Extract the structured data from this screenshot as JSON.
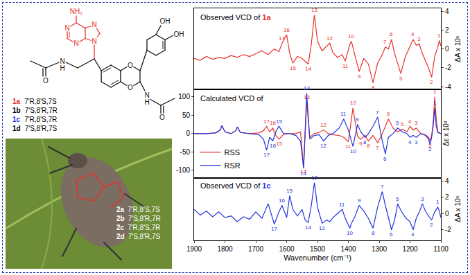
{
  "chart_data": [
    {
      "type": "line",
      "title": "Observed VCD of",
      "compound": "1a",
      "y_label": "ΔA x 10⁵",
      "xlim": [
        1900,
        1100
      ],
      "xticks": [
        1900,
        1800,
        1700,
        1600,
        1500,
        1400,
        1300,
        1200,
        1100
      ],
      "ylim": [
        -4.3,
        4.3
      ],
      "yticks": [
        -4,
        -2,
        0,
        2,
        4
      ],
      "grid": false,
      "tick_labels": "y",
      "x": [
        1900,
        1880,
        1860,
        1840,
        1820,
        1800,
        1780,
        1760,
        1740,
        1720,
        1700,
        1680,
        1660,
        1640,
        1625,
        1615,
        1600,
        1590,
        1580,
        1565,
        1550,
        1540,
        1530,
        1520,
        1510,
        1500,
        1485,
        1470,
        1460,
        1450,
        1435,
        1420,
        1410,
        1395,
        1390,
        1380,
        1365,
        1350,
        1335,
        1320,
        1305,
        1290,
        1280,
        1270,
        1260,
        1250,
        1240,
        1230,
        1215,
        1200,
        1190,
        1180,
        1170,
        1160,
        1150,
        1140,
        1130,
        1120,
        1110,
        1105,
        1100
      ],
      "series": [
        {
          "color": "#e8302a",
          "values": [
            -1.0,
            -1.2,
            -0.8,
            -1.1,
            -0.9,
            -1.0,
            -0.7,
            -0.9,
            -0.6,
            -0.8,
            -0.5,
            -0.2,
            -0.6,
            0.0,
            -0.3,
            0.6,
            1.5,
            -0.5,
            -1.5,
            -0.8,
            -1.0,
            -1.3,
            -1.6,
            0.5,
            3.6,
            0.8,
            -0.2,
            0.3,
            0.6,
            -0.4,
            -0.9,
            -0.6,
            -1.3,
            0.5,
            0.8,
            -0.5,
            -2.4,
            -1.0,
            -1.6,
            -3.6,
            -1.5,
            -0.6,
            0.2,
            0.0,
            1.0,
            -0.5,
            -1.5,
            -2.6,
            -0.8,
            0.3,
            1.0,
            0.4,
            0.5,
            -0.5,
            -1.2,
            -2.0,
            -3.0,
            -0.8,
            0.2,
            0.9,
            0.3
          ],
          "peaks": [
            {
              "label": "17",
              "x": 1615
            },
            {
              "label": "16",
              "x": 1600
            },
            {
              "label": "15",
              "x": 1580
            },
            {
              "label": "14",
              "x": 1530
            },
            {
              "label": "13",
              "x": 1510
            },
            {
              "label": "12",
              "x": 1460
            },
            {
              "label": "11",
              "x": 1410
            },
            {
              "label": "10",
              "x": 1390
            },
            {
              "label": "9",
              "x": 1365
            },
            {
              "label": "8",
              "x": 1320
            },
            {
              "label": "7",
              "x": 1280
            },
            {
              "label": "6",
              "x": 1260
            },
            {
              "label": "5",
              "x": 1230
            },
            {
              "label": "4",
              "x": 1190
            },
            {
              "label": "3",
              "x": 1170
            },
            {
              "label": "2",
              "x": 1130
            },
            {
              "label": "1",
              "x": 1105
            }
          ]
        }
      ]
    },
    {
      "type": "line",
      "title": "Calculated VCD of",
      "y_label": "Δε x 10³",
      "xlim": [
        1900,
        1100
      ],
      "xticks": [
        1900,
        1800,
        1700,
        1600,
        1500,
        1400,
        1300,
        1200,
        1100
      ],
      "ylim": [
        -120,
        120
      ],
      "yticks": [
        -100,
        -50,
        0,
        50,
        100
      ],
      "grid": false,
      "tick_labels": "y",
      "legend": "lower left",
      "x": [
        1900,
        1860,
        1830,
        1815,
        1810,
        1800,
        1780,
        1765,
        1760,
        1750,
        1720,
        1690,
        1675,
        1665,
        1655,
        1645,
        1635,
        1625,
        1610,
        1590,
        1570,
        1555,
        1545,
        1535,
        1525,
        1510,
        1495,
        1480,
        1465,
        1450,
        1430,
        1415,
        1400,
        1385,
        1370,
        1360,
        1345,
        1335,
        1320,
        1305,
        1290,
        1280,
        1270,
        1255,
        1240,
        1225,
        1210,
        1200,
        1190,
        1180,
        1165,
        1150,
        1140,
        1135,
        1130,
        1125,
        1120,
        1115,
        1110,
        1100
      ],
      "series": [
        {
          "name": "RSS",
          "color": "#e8302a",
          "values": [
            0,
            0,
            2,
            10,
            22,
            5,
            0,
            8,
            18,
            3,
            0,
            2,
            8,
            20,
            5,
            15,
            -5,
            -15,
            -2,
            0,
            0,
            5,
            -90,
            85,
            -10,
            0,
            3,
            10,
            0,
            -3,
            -5,
            -10,
            -22,
            70,
            -8,
            -15,
            -5,
            -20,
            -5,
            -25,
            0,
            20,
            40,
            15,
            5,
            12,
            5,
            20,
            10,
            15,
            0,
            -3,
            -10,
            -20,
            -5,
            30,
            100,
            40,
            5,
            0
          ],
          "peaks": [
            {
              "label": "17",
              "x": 1665
            },
            {
              "label": "16",
              "x": 1645
            },
            {
              "label": "15",
              "x": 1625
            },
            {
              "label": "14",
              "x": 1545
            },
            {
              "label": "13",
              "x": 1535
            },
            {
              "label": "12",
              "x": 1480
            },
            {
              "label": "11",
              "x": 1400
            },
            {
              "label": "10",
              "x": 1385
            },
            {
              "label": "9",
              "x": 1360
            },
            {
              "label": "8",
              "x": 1335
            },
            {
              "label": "7",
              "x": 1305
            },
            {
              "label": "6",
              "x": 1270
            },
            {
              "label": "5",
              "x": 1225
            },
            {
              "label": "4",
              "x": 1200
            },
            {
              "label": "3",
              "x": 1180
            },
            {
              "label": "2",
              "x": 1135
            },
            {
              "label": "1",
              "x": 1120
            }
          ]
        },
        {
          "name": "RSR",
          "color": "#2233dd",
          "values": [
            0,
            0,
            2,
            10,
            22,
            5,
            0,
            8,
            18,
            3,
            0,
            -3,
            -15,
            -45,
            -10,
            -20,
            5,
            20,
            0,
            0,
            -5,
            -20,
            -95,
            110,
            -15,
            -5,
            -3,
            -20,
            -5,
            0,
            15,
            40,
            10,
            -35,
            25,
            5,
            -10,
            0,
            20,
            45,
            -20,
            -55,
            -10,
            0,
            15,
            5,
            0,
            -10,
            -5,
            -10,
            0,
            -5,
            -15,
            -30,
            -10,
            20,
            70,
            20,
            3,
            0
          ],
          "peaks": [
            {
              "label": "17",
              "x": 1665
            },
            {
              "label": "16",
              "x": 1645
            },
            {
              "label": "15",
              "x": 1625
            },
            {
              "label": "14",
              "x": 1545
            },
            {
              "label": "13",
              "x": 1535
            },
            {
              "label": "12",
              "x": 1480
            },
            {
              "label": "11",
              "x": 1415
            },
            {
              "label": "10",
              "x": 1385
            },
            {
              "label": "9",
              "x": 1370
            },
            {
              "label": "8",
              "x": 1345
            },
            {
              "label": "7",
              "x": 1305
            },
            {
              "label": "6",
              "x": 1280
            },
            {
              "label": "5",
              "x": 1240
            },
            {
              "label": "4",
              "x": 1200
            },
            {
              "label": "3",
              "x": 1180
            },
            {
              "label": "2",
              "x": 1135
            },
            {
              "label": "1",
              "x": 1120
            }
          ]
        }
      ]
    },
    {
      "type": "line",
      "title": "Observed VCD of",
      "compound": "1c",
      "y_label": "ΔA x 10⁵",
      "x_label": "Wavenumber (cm⁻¹)",
      "xlim": [
        1900,
        1100
      ],
      "xticks": [
        1900,
        1800,
        1700,
        1600,
        1500,
        1400,
        1300,
        1200,
        1100
      ],
      "ylim": [
        -3.3,
        4.4
      ],
      "yticks": [
        -2,
        0,
        2,
        4
      ],
      "grid": false,
      "x": [
        1900,
        1880,
        1860,
        1840,
        1820,
        1800,
        1780,
        1760,
        1740,
        1720,
        1700,
        1680,
        1660,
        1640,
        1625,
        1615,
        1600,
        1590,
        1580,
        1565,
        1550,
        1540,
        1530,
        1520,
        1510,
        1500,
        1485,
        1470,
        1460,
        1450,
        1435,
        1420,
        1410,
        1395,
        1390,
        1380,
        1365,
        1350,
        1335,
        1320,
        1305,
        1290,
        1280,
        1270,
        1260,
        1250,
        1240,
        1230,
        1215,
        1200,
        1190,
        1180,
        1170,
        1160,
        1150,
        1140,
        1130,
        1120,
        1110,
        1105,
        1100
      ],
      "series": [
        {
          "color": "#2233dd",
          "values": [
            0.5,
            -0.2,
            0.3,
            -0.4,
            0.2,
            -0.5,
            -0.3,
            -1.0,
            -0.4,
            -0.7,
            0.2,
            -0.6,
            1.2,
            -1.3,
            0.2,
            1.0,
            -0.5,
            2.2,
            0.5,
            -0.3,
            0.5,
            -0.8,
            -1.1,
            1.0,
            3.8,
            0.8,
            -1.2,
            -0.8,
            -1.0,
            -0.5,
            0.0,
            0.5,
            -0.6,
            -1.8,
            -1.2,
            -0.5,
            1.0,
            0.3,
            -0.6,
            -1.8,
            0.8,
            2.7,
            1.0,
            -0.5,
            -2.0,
            -0.8,
            1.2,
            0.4,
            -0.5,
            -1.0,
            -2.0,
            -0.6,
            0.2,
            1.2,
            0.3,
            -0.3,
            -0.8,
            0.2,
            0.8,
            0.3,
            -0.5
          ],
          "peaks": [
            {
              "label": "17",
              "x": 1640
            },
            {
              "label": "16",
              "x": 1615
            },
            {
              "label": "15",
              "x": 1590
            },
            {
              "label": "14",
              "x": 1530
            },
            {
              "label": "13",
              "x": 1510
            },
            {
              "label": "12",
              "x": 1485
            },
            {
              "label": "11",
              "x": 1420
            },
            {
              "label": "10",
              "x": 1395
            },
            {
              "label": "9",
              "x": 1365
            },
            {
              "label": "8",
              "x": 1320
            },
            {
              "label": "7",
              "x": 1290
            },
            {
              "label": "6",
              "x": 1260
            },
            {
              "label": "5",
              "x": 1240
            },
            {
              "label": "4",
              "x": 1190
            },
            {
              "label": "3",
              "x": 1160
            },
            {
              "label": "2",
              "x": 1130
            },
            {
              "label": "1",
              "x": 1110
            }
          ]
        }
      ]
    }
  ],
  "structure": {
    "atoms": [
      "NH₂",
      "N",
      "N",
      "N",
      "N",
      "N",
      "H",
      "O",
      "O",
      "O",
      "OH",
      "OH",
      "N",
      "H",
      "O"
    ],
    "compounds": [
      {
        "id": "1a",
        "config": "7'R,8'S,7S",
        "color": "#e8302a"
      },
      {
        "id": "1b",
        "config": "7'S,8'R,7R",
        "color": "#000000"
      },
      {
        "id": "1c",
        "config": "7'R,8'S,7R",
        "color": "#2233dd"
      },
      {
        "id": "1d",
        "config": "7'S,8'R,7S",
        "color": "#000000"
      }
    ],
    "photo_compounds": [
      {
        "id": "2a",
        "config": "7'R,8'S,7S"
      },
      {
        "id": "2b",
        "config": "7'S,8'R,7R"
      },
      {
        "id": "2c",
        "config": "7'R,8'S,7R"
      },
      {
        "id": "2d",
        "config": "7'S,8'R,7S"
      }
    ]
  }
}
